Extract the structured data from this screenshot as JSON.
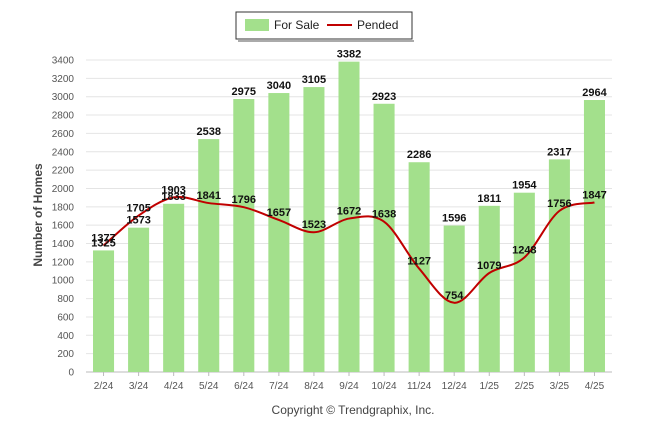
{
  "chart_data": {
    "type": "bar",
    "categories": [
      "2/24",
      "3/24",
      "4/24",
      "5/24",
      "6/24",
      "7/24",
      "8/24",
      "9/24",
      "10/24",
      "11/24",
      "12/24",
      "1/25",
      "2/25",
      "3/25",
      "4/25"
    ],
    "series": [
      {
        "name": "For Sale",
        "type": "bar",
        "color": "#a3e08c",
        "values": [
          1325,
          1573,
          1833,
          2538,
          2975,
          3040,
          3105,
          3382,
          2923,
          2286,
          1596,
          1811,
          1954,
          2317,
          2964
        ]
      },
      {
        "name": "Pended",
        "type": "line",
        "color": "#c00000",
        "values": [
          1377,
          1705,
          1903,
          1841,
          1796,
          1657,
          1523,
          1672,
          1638,
          1127,
          754,
          1079,
          1248,
          1756,
          1847
        ]
      }
    ],
    "xlabel": "",
    "ylabel": "Number of Homes",
    "ylim": [
      0,
      3400
    ],
    "yticks": [
      0,
      200,
      400,
      600,
      800,
      1000,
      1200,
      1400,
      1600,
      1800,
      2000,
      2200,
      2400,
      2600,
      2800,
      3000,
      3200,
      3400
    ],
    "grid": true,
    "legend_position": "top-center"
  },
  "footer": "Copyright © Trendgraphix, Inc."
}
